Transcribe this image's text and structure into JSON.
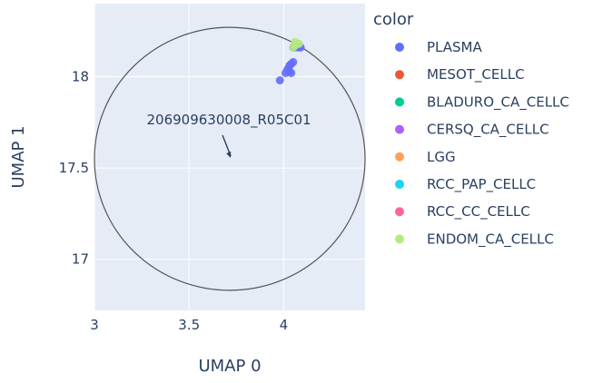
{
  "chart_data": {
    "type": "scatter",
    "xlabel": "UMAP 0",
    "ylabel": "UMAP 1",
    "xlim": [
      3.0,
      4.43
    ],
    "ylim": [
      16.72,
      18.4
    ],
    "x_ticks": [
      3,
      3.5,
      4
    ],
    "y_ticks": [
      17,
      17.5,
      18
    ],
    "x_tick_labels": [
      "3",
      "3.5",
      "4"
    ],
    "y_tick_labels": [
      "17",
      "17.5",
      "18"
    ],
    "grid": true,
    "plot_background": "#e5ecf6",
    "grid_color": "#ffffff",
    "legend": {
      "title": "color",
      "placement": "right"
    },
    "series": [
      {
        "name": "PLASMA",
        "color": "#636efa",
        "points": [
          [
            3.98,
            17.98
          ],
          [
            4.01,
            18.02
          ],
          [
            4.02,
            18.04
          ],
          [
            4.03,
            18.03
          ],
          [
            4.04,
            18.02
          ],
          [
            4.03,
            18.06
          ],
          [
            4.04,
            18.07
          ],
          [
            4.05,
            18.08
          ],
          [
            4.05,
            18.16
          ],
          [
            4.06,
            18.16
          ],
          [
            4.07,
            18.17
          ],
          [
            4.08,
            18.16
          ],
          [
            4.09,
            18.16
          ]
        ]
      },
      {
        "name": "MESOT_CELLC",
        "color": "#EF553B",
        "points": []
      },
      {
        "name": "BLADURO_CA_CELLC",
        "color": "#00cc96",
        "points": []
      },
      {
        "name": "CERSQ_CA_CELLC",
        "color": "#ab63fa",
        "points": []
      },
      {
        "name": "LGG",
        "color": "#FFA15A",
        "points": []
      },
      {
        "name": "RCC_PAP_CELLC",
        "color": "#19d3f3",
        "points": []
      },
      {
        "name": "RCC_CC_CELLC",
        "color": "#FF6692",
        "points": []
      },
      {
        "name": "ENDOM_CA_CELLC",
        "color": "#B6E880",
        "points": [
          [
            4.05,
            18.16
          ],
          [
            4.06,
            18.17
          ],
          [
            4.07,
            18.18
          ],
          [
            4.06,
            18.19
          ],
          [
            4.08,
            18.18
          ]
        ]
      }
    ],
    "shapes": [
      {
        "type": "circle",
        "x0": 3.0,
        "x1": 4.43,
        "y0": 16.83,
        "y1": 18.27,
        "line_color": "#555555"
      }
    ],
    "annotations": [
      {
        "text": "206909630008_R05C01",
        "x": 3.72,
        "y": 17.55
      }
    ]
  }
}
